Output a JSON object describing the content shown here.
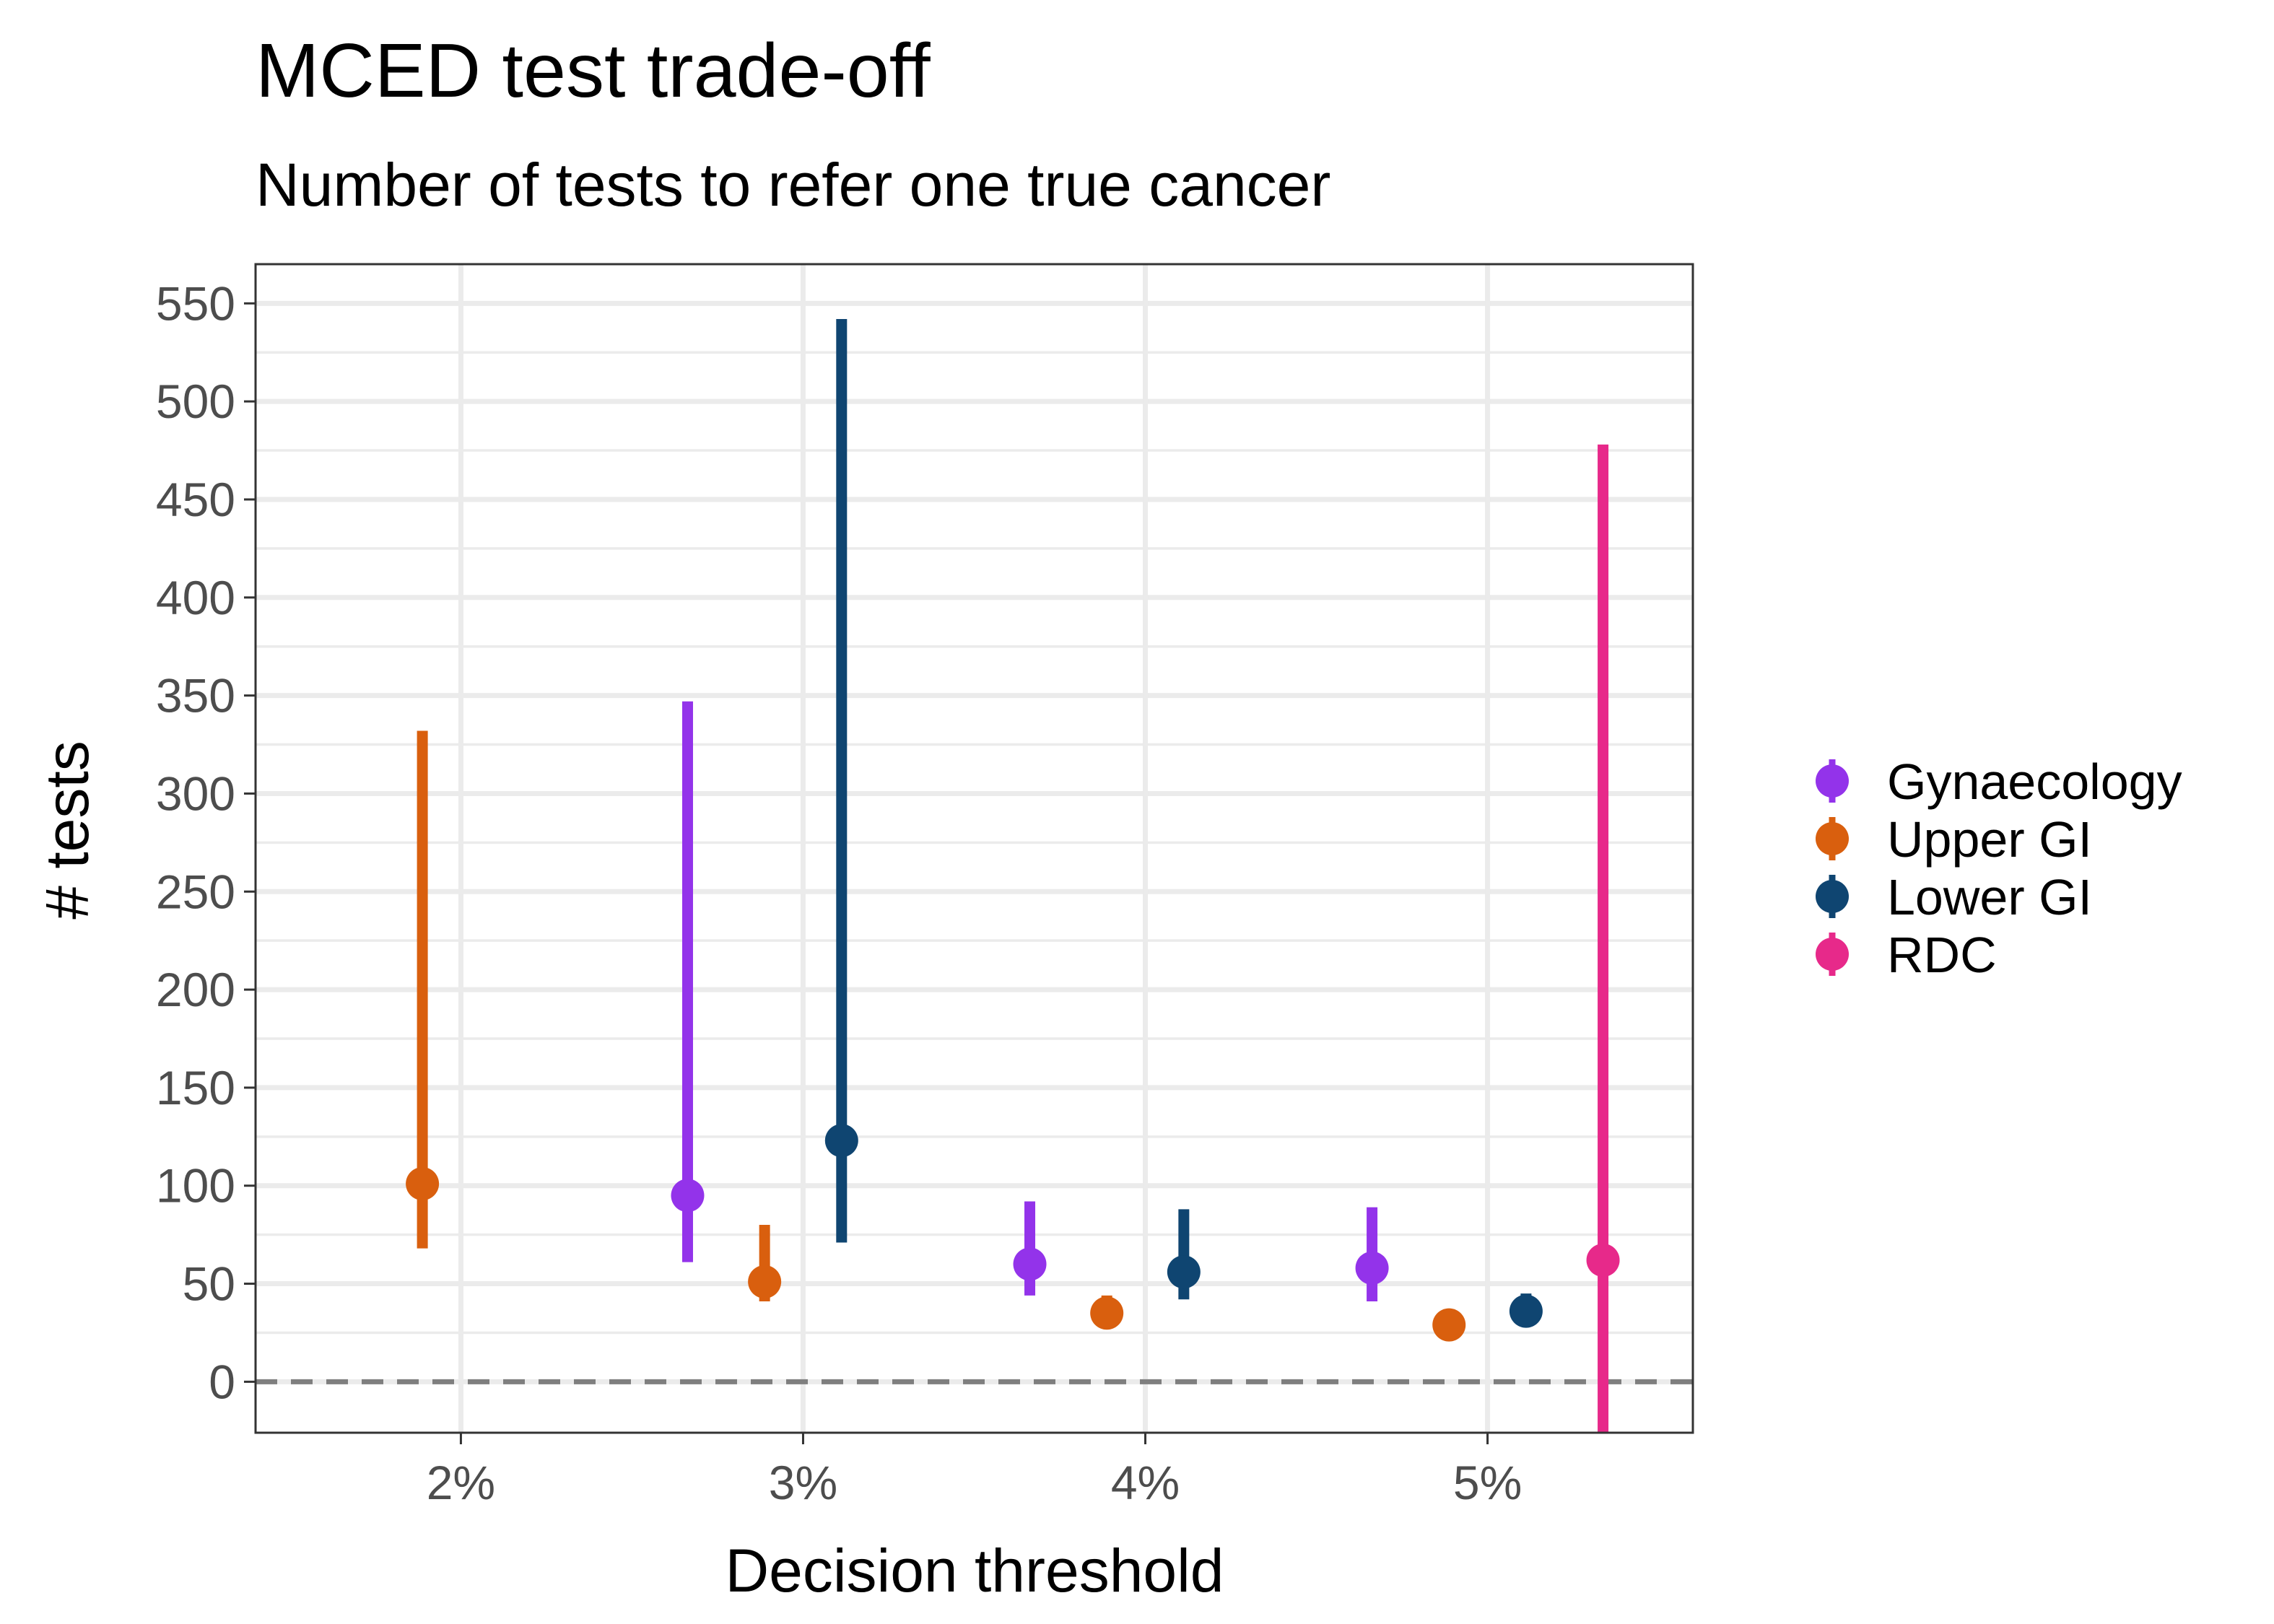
{
  "title": "MCED test trade-off",
  "subtitle": "Number of tests to refer one true cancer",
  "chart_data": {
    "type": "scatter",
    "style": "point-range (error bars)",
    "title": "MCED test trade-off",
    "subtitle": "Number of tests to refer one true cancer",
    "xlabel": "Decision threshold",
    "ylabel": "# tests",
    "categories": [
      "2%",
      "3%",
      "4%",
      "5%"
    ],
    "x_tick_labels": [
      "2%",
      "3%",
      "4%",
      "5%"
    ],
    "y_ticks": [
      0,
      50,
      100,
      150,
      200,
      250,
      300,
      350,
      400,
      450,
      500,
      550
    ],
    "ylim": [
      -26,
      570
    ],
    "grid": true,
    "reference_line": {
      "y": 0,
      "style": "dashed",
      "color": "#7f7f7f"
    },
    "legend": {
      "position": "right"
    },
    "series": [
      {
        "name": "Gynaecology",
        "color": "#9333EA",
        "points": [
          {
            "x": "3%",
            "value": 95,
            "lower": 61,
            "upper": 347
          },
          {
            "x": "4%",
            "value": 60,
            "lower": 44,
            "upper": 92
          },
          {
            "x": "5%",
            "value": 58,
            "lower": 41,
            "upper": 89
          }
        ]
      },
      {
        "name": "Upper GI",
        "color": "#D95F0E",
        "points": [
          {
            "x": "2%",
            "value": 101,
            "lower": 68,
            "upper": 332
          },
          {
            "x": "3%",
            "value": 51,
            "lower": 41,
            "upper": 80
          },
          {
            "x": "4%",
            "value": 35,
            "lower": 29,
            "upper": 44
          },
          {
            "x": "5%",
            "value": 29,
            "lower": 24,
            "upper": 37
          }
        ]
      },
      {
        "name": "Lower GI",
        "color": "#0F4571",
        "points": [
          {
            "x": "3%",
            "value": 123,
            "lower": 71,
            "upper": 542
          },
          {
            "x": "4%",
            "value": 56,
            "lower": 42,
            "upper": 88
          },
          {
            "x": "5%",
            "value": 36,
            "lower": 30,
            "upper": 45
          }
        ]
      },
      {
        "name": "RDC",
        "color": "#E7298A",
        "points": [
          {
            "x": "5%",
            "value": 62,
            "lower": -26,
            "upper": 478
          }
        ]
      }
    ]
  }
}
